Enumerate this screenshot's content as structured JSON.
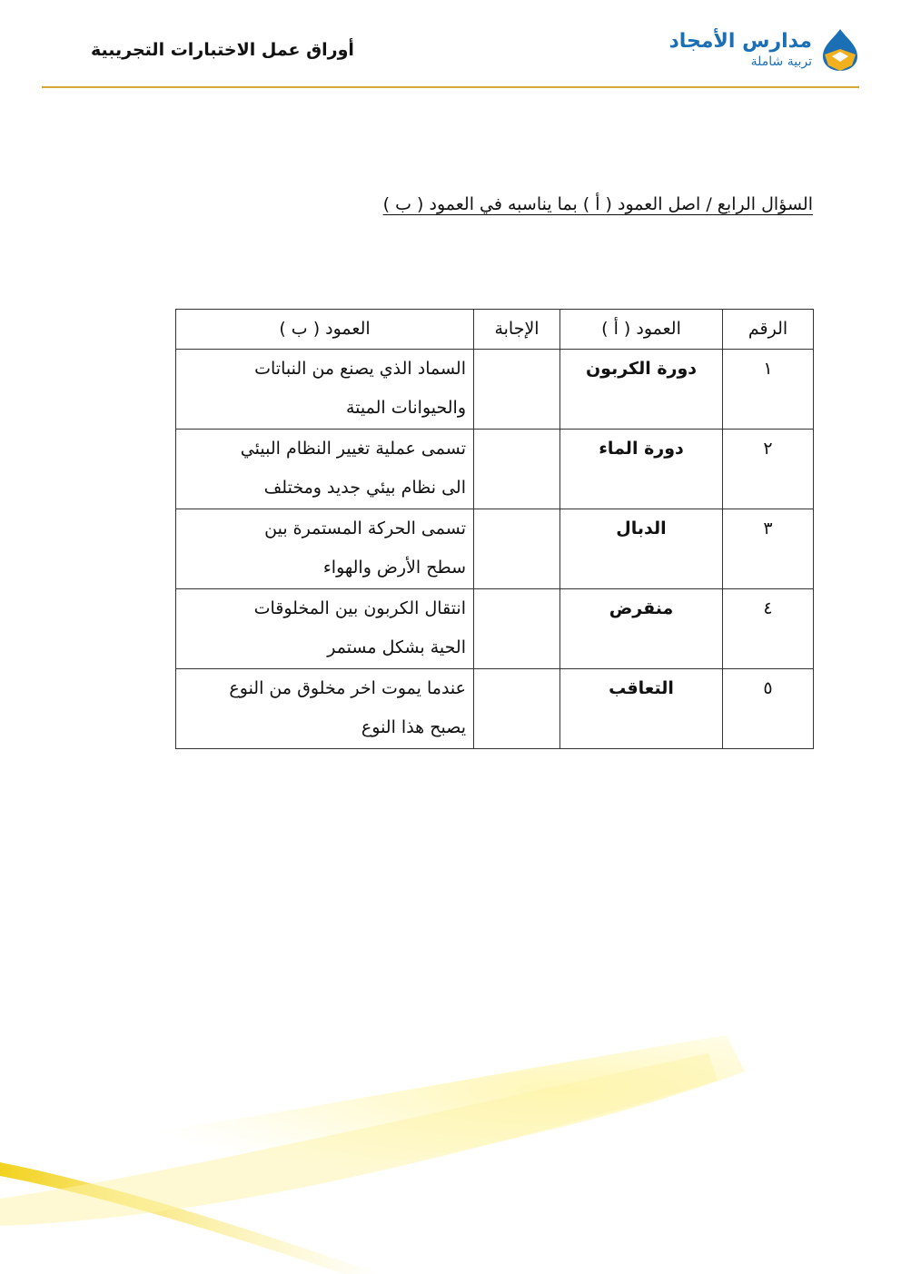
{
  "header": {
    "title": "أوراق عمل الاختبارات التجريبية",
    "logo": {
      "name": "مدارس الأمجاد",
      "tagline": "تربية شاملة"
    },
    "accent_color": "#d6a637",
    "brand_color": "#1b6fb5"
  },
  "question": "السؤال الرابع / اصل العمود ( أ ) بما يناسبه في العمود ( ب )",
  "table": {
    "headers": {
      "number": "الرقم",
      "column_a": "العمود ( أ )",
      "answer": "الإجابة",
      "column_b": "العمود ( ب )"
    },
    "rows": [
      {
        "number": "١",
        "column_a": "دورة الكربون",
        "answer": "",
        "column_b": [
          "السماد الذي يصنع من النباتات",
          "والحيوانات الميتة"
        ]
      },
      {
        "number": "٢",
        "column_a": "دورة الماء",
        "answer": "",
        "column_b": [
          "تسمى عملية تغيير النظام البيئي",
          "الى نظام بيئي جديد ومختلف"
        ]
      },
      {
        "number": "٣",
        "column_a": "الدبال",
        "answer": "",
        "column_b": [
          "تسمى الحركة المستمرة بين",
          "سطح الأرض والهواء"
        ]
      },
      {
        "number": "٤",
        "column_a": "منقرض",
        "answer": "",
        "column_b": [
          "انتقال الكربون بين المخلوقات",
          "الحية بشكل مستمر"
        ]
      },
      {
        "number": "٥",
        "column_a": "التعاقب",
        "answer": "",
        "column_b": [
          "عندما يموت اخر مخلوق من النوع",
          "يصبح هذا النوع"
        ]
      }
    ]
  }
}
